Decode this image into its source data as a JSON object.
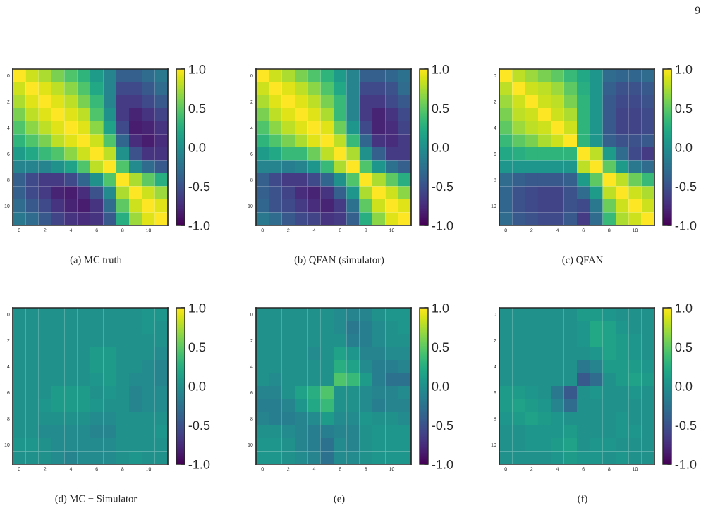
{
  "chart_data": [
    {
      "type": "heatmap",
      "title": "(a) MC truth",
      "annotations": [
        "9"
      ],
      "categories": [
        "0",
        null,
        "2",
        null,
        "4",
        null,
        "6",
        null,
        "8",
        null,
        "10",
        null
      ],
      "y_categories": [
        "0",
        null,
        "2",
        null,
        "4",
        null,
        "6",
        null,
        "8",
        null,
        "10",
        null
      ],
      "cells": [
        [
          1,
          0.85,
          0.75,
          0.6,
          0.45,
          0.3,
          0.1,
          -0.1,
          -0.4,
          -0.4,
          -0.3,
          -0.2
        ],
        [
          0.85,
          1,
          0.9,
          0.8,
          0.65,
          0.45,
          0.2,
          -0.1,
          -0.55,
          -0.55,
          -0.45,
          -0.3
        ],
        [
          0.75,
          0.9,
          1,
          0.9,
          0.8,
          0.6,
          0.35,
          -0.1,
          -0.65,
          -0.65,
          -0.55,
          -0.45
        ],
        [
          0.6,
          0.8,
          0.9,
          1,
          0.9,
          0.8,
          0.45,
          0,
          -0.65,
          -0.8,
          -0.7,
          -0.6
        ],
        [
          0.45,
          0.65,
          0.8,
          0.9,
          1,
          0.9,
          0.65,
          0.15,
          -0.55,
          -0.85,
          -0.8,
          -0.7
        ],
        [
          0.3,
          0.45,
          0.6,
          0.8,
          0.9,
          1,
          0.85,
          0.45,
          -0.35,
          -0.75,
          -0.85,
          -0.75
        ],
        [
          0.1,
          0.2,
          0.35,
          0.45,
          0.65,
          0.85,
          1,
          0.8,
          0,
          -0.5,
          -0.7,
          -0.7
        ],
        [
          -0.1,
          -0.1,
          -0.1,
          0,
          0.15,
          0.45,
          0.8,
          1,
          0.45,
          -0.05,
          -0.3,
          -0.45
        ],
        [
          -0.4,
          -0.55,
          -0.65,
          -0.65,
          -0.55,
          -0.35,
          0,
          0.45,
          1,
          0.75,
          0.5,
          0.25
        ],
        [
          -0.4,
          -0.55,
          -0.65,
          -0.8,
          -0.85,
          -0.75,
          -0.5,
          -0.05,
          0.75,
          1,
          0.85,
          0.7
        ],
        [
          -0.3,
          -0.45,
          -0.55,
          -0.7,
          -0.8,
          -0.85,
          -0.7,
          -0.3,
          0.5,
          0.85,
          1,
          0.9
        ],
        [
          -0.2,
          -0.3,
          -0.45,
          -0.6,
          -0.7,
          -0.75,
          -0.7,
          -0.45,
          0.25,
          0.7,
          0.9,
          1
        ]
      ],
      "clim": [
        -1,
        1
      ],
      "cticks": [
        {
          "value": -1,
          "label": "-1.0"
        },
        {
          "value": -0.5,
          "label": "-0.5"
        },
        {
          "value": 0,
          "label": "0.0"
        },
        {
          "value": 0.5,
          "label": "0.5"
        },
        {
          "value": 1,
          "label": "1.0"
        }
      ]
    },
    {
      "type": "heatmap",
      "title": "(b) QFAN (simulator)",
      "categories": [
        "0",
        null,
        "2",
        null,
        "4",
        null,
        "6",
        null,
        "8",
        null,
        "10",
        null
      ],
      "y_categories": [
        "0",
        null,
        "2",
        null,
        "4",
        null,
        "6",
        null,
        "8",
        null,
        "10",
        null
      ],
      "cells": [
        [
          1,
          0.85,
          0.75,
          0.6,
          0.45,
          0.3,
          0.1,
          -0.1,
          -0.4,
          -0.4,
          -0.35,
          -0.25
        ],
        [
          0.85,
          1,
          0.9,
          0.8,
          0.65,
          0.45,
          0.2,
          -0.1,
          -0.55,
          -0.55,
          -0.5,
          -0.3
        ],
        [
          0.75,
          0.9,
          1,
          0.9,
          0.8,
          0.6,
          0.35,
          -0.1,
          -0.65,
          -0.65,
          -0.55,
          -0.45
        ],
        [
          0.6,
          0.8,
          0.9,
          1,
          0.9,
          0.75,
          0.35,
          -0.1,
          -0.65,
          -0.8,
          -0.7,
          -0.55
        ],
        [
          0.45,
          0.65,
          0.8,
          0.9,
          1,
          0.9,
          0.55,
          0.05,
          -0.55,
          -0.8,
          -0.75,
          -0.6
        ],
        [
          0.3,
          0.45,
          0.6,
          0.75,
          0.9,
          1,
          0.8,
          0.35,
          -0.35,
          -0.7,
          -0.75,
          -0.65
        ],
        [
          0.1,
          0.2,
          0.35,
          0.35,
          0.55,
          0.8,
          1,
          0.75,
          0,
          -0.4,
          -0.65,
          -0.65
        ],
        [
          -0.1,
          -0.1,
          -0.15,
          -0.1,
          0.05,
          0.35,
          0.75,
          1,
          0.45,
          0.05,
          -0.25,
          -0.4
        ],
        [
          -0.4,
          -0.55,
          -0.65,
          -0.65,
          -0.55,
          -0.35,
          0,
          0.45,
          1,
          0.75,
          0.5,
          0.25
        ],
        [
          -0.4,
          -0.5,
          -0.6,
          -0.75,
          -0.8,
          -0.7,
          -0.4,
          0.05,
          0.75,
          1,
          0.85,
          0.65
        ],
        [
          -0.35,
          -0.5,
          -0.55,
          -0.65,
          -0.75,
          -0.8,
          -0.65,
          -0.25,
          0.5,
          0.85,
          1,
          0.9
        ],
        [
          -0.2,
          -0.3,
          -0.45,
          -0.55,
          -0.6,
          -0.7,
          -0.65,
          -0.4,
          0.25,
          0.65,
          0.9,
          1
        ]
      ],
      "clim": [
        -1,
        1
      ],
      "cticks": [
        {
          "value": -1,
          "label": "-1.0"
        },
        {
          "value": -0.5,
          "label": "-0.5"
        },
        {
          "value": 0,
          "label": "0.0"
        },
        {
          "value": 0.5,
          "label": "0.5"
        },
        {
          "value": 1,
          "label": "1.0"
        }
      ]
    },
    {
      "type": "heatmap",
      "title": "(c) QFAN",
      "categories": [
        "0",
        null,
        "2",
        null,
        "4",
        null,
        "6",
        null,
        "8",
        null,
        "10",
        null
      ],
      "y_categories": [
        "0",
        null,
        "2",
        null,
        "4",
        null,
        "6",
        null,
        "8",
        null,
        "10",
        null
      ],
      "cells": [
        [
          1,
          0.8,
          0.7,
          0.6,
          0.5,
          0.35,
          0.2,
          0.05,
          -0.3,
          -0.35,
          -0.35,
          -0.3
        ],
        [
          0.8,
          1,
          0.85,
          0.8,
          0.7,
          0.5,
          0.25,
          0.05,
          -0.4,
          -0.5,
          -0.5,
          -0.45
        ],
        [
          0.7,
          0.85,
          1,
          0.85,
          0.8,
          0.6,
          0.3,
          0.05,
          -0.45,
          -0.55,
          -0.55,
          -0.5
        ],
        [
          0.6,
          0.8,
          0.85,
          1,
          0.85,
          0.75,
          0.3,
          0.05,
          -0.45,
          -0.6,
          -0.6,
          -0.55
        ],
        [
          0.5,
          0.7,
          0.8,
          0.85,
          1,
          0.85,
          0.3,
          0.05,
          -0.45,
          -0.6,
          -0.6,
          -0.55
        ],
        [
          0.35,
          0.5,
          0.6,
          0.75,
          0.85,
          1,
          0.3,
          0.05,
          -0.4,
          -0.5,
          -0.5,
          -0.45
        ],
        [
          0.2,
          0.25,
          0.3,
          0.3,
          0.3,
          0.3,
          1,
          0.8,
          0.1,
          -0.3,
          -0.55,
          -0.65
        ],
        [
          0.05,
          0.05,
          0.05,
          0.05,
          0.05,
          0.05,
          0.8,
          1,
          0.5,
          0.1,
          -0.2,
          -0.3
        ],
        [
          -0.3,
          -0.4,
          -0.45,
          -0.45,
          -0.45,
          -0.4,
          0.1,
          0.5,
          1,
          0.8,
          0.55,
          0.35
        ],
        [
          -0.35,
          -0.5,
          -0.55,
          -0.6,
          -0.6,
          -0.5,
          -0.3,
          0.1,
          0.8,
          1,
          0.85,
          0.75
        ],
        [
          -0.35,
          -0.5,
          -0.55,
          -0.6,
          -0.6,
          -0.5,
          -0.55,
          -0.2,
          0.55,
          0.85,
          1,
          0.85
        ],
        [
          -0.3,
          -0.45,
          -0.5,
          -0.55,
          -0.55,
          -0.45,
          -0.65,
          -0.3,
          0.35,
          0.75,
          0.85,
          1
        ]
      ],
      "clim": [
        -1,
        1
      ],
      "cticks": [
        {
          "value": -1,
          "label": "-1.0"
        },
        {
          "value": -0.5,
          "label": "-0.5"
        },
        {
          "value": 0,
          "label": "0.0"
        },
        {
          "value": 0.5,
          "label": "0.5"
        },
        {
          "value": 1,
          "label": "1.0"
        }
      ]
    },
    {
      "type": "heatmap",
      "title": "(d) MC − Simulator",
      "categories": [
        "0",
        null,
        "2",
        null,
        "4",
        null,
        "6",
        null,
        "8",
        null,
        "10",
        null
      ],
      "y_categories": [
        "0",
        null,
        "2",
        null,
        "4",
        null,
        "6",
        null,
        "8",
        null,
        "10",
        null
      ],
      "cells": [
        [
          0,
          0,
          0,
          0,
          0,
          0,
          0,
          0,
          0,
          0,
          0.05,
          0.05
        ],
        [
          0,
          0,
          0,
          0,
          0,
          0,
          0,
          0,
          0,
          0,
          0.05,
          0
        ],
        [
          0,
          0,
          0,
          0,
          0,
          0,
          0,
          0,
          0,
          0,
          0,
          0
        ],
        [
          0,
          0,
          0,
          0,
          0,
          0,
          0.1,
          0.1,
          0,
          0,
          0,
          -0.05
        ],
        [
          0,
          0,
          0,
          0,
          0,
          0,
          0.1,
          0.1,
          0,
          0,
          -0.05,
          -0.1
        ],
        [
          0,
          0,
          0,
          0,
          0,
          0,
          0.05,
          0.1,
          0,
          -0.05,
          -0.05,
          -0.1
        ],
        [
          0,
          0,
          0,
          0.1,
          0.1,
          0.1,
          0,
          0.05,
          0,
          -0.1,
          -0.05,
          -0.05
        ],
        [
          0,
          0,
          0.05,
          0.1,
          0.1,
          0.1,
          0.05,
          0,
          0,
          -0.1,
          -0.05,
          -0.05
        ],
        [
          0,
          0,
          0,
          0,
          0,
          0,
          -0.05,
          -0.05,
          0,
          0,
          0,
          0
        ],
        [
          0,
          0,
          -0.05,
          -0.05,
          -0.05,
          -0.05,
          -0.1,
          -0.1,
          0,
          0,
          0,
          0.05
        ],
        [
          0.05,
          0.05,
          0,
          -0.05,
          -0.05,
          -0.05,
          -0.05,
          -0.05,
          0,
          0,
          0,
          0
        ],
        [
          0,
          0,
          0,
          -0.05,
          -0.1,
          -0.05,
          -0.05,
          -0.05,
          0,
          0.05,
          0,
          0
        ]
      ],
      "clim": [
        -1,
        1
      ],
      "cticks": [
        {
          "value": -1,
          "label": "-1.0"
        },
        {
          "value": -0.5,
          "label": "-0.5"
        },
        {
          "value": 0,
          "label": "0.0"
        },
        {
          "value": 0.5,
          "label": "0.5"
        },
        {
          "value": 1,
          "label": "1.0"
        }
      ]
    },
    {
      "type": "heatmap",
      "title": "(e)",
      "categories": [
        "0",
        null,
        "2",
        null,
        "4",
        null,
        "6",
        null,
        "8",
        null,
        "10",
        null
      ],
      "y_categories": [
        "0",
        null,
        "2",
        null,
        "4",
        null,
        "6",
        null,
        "8",
        null,
        "10",
        null
      ],
      "cells": [
        [
          0,
          0,
          0,
          0,
          0,
          0,
          -0.05,
          -0.1,
          -0.1,
          0,
          0.05,
          0.05
        ],
        [
          0,
          0,
          0,
          0,
          0,
          0,
          -0.05,
          -0.2,
          -0.15,
          -0.05,
          0,
          0.05
        ],
        [
          0,
          0,
          0,
          0,
          0,
          0,
          0,
          -0.15,
          -0.15,
          -0.05,
          0,
          0
        ],
        [
          0,
          0,
          0,
          0,
          -0.05,
          0,
          0.15,
          0.05,
          -0.1,
          -0.1,
          -0.05,
          -0.05
        ],
        [
          0,
          0,
          0,
          0,
          0,
          0,
          0.25,
          0.15,
          -0.05,
          -0.15,
          -0.15,
          -0.1
        ],
        [
          0,
          -0.05,
          0,
          0,
          0,
          0,
          0.45,
          0.35,
          0.1,
          -0.15,
          -0.25,
          -0.25
        ],
        [
          -0.1,
          -0.1,
          0,
          0.15,
          0.25,
          0.45,
          0,
          0,
          -0.05,
          -0.1,
          -0.1,
          -0.05
        ],
        [
          -0.15,
          -0.15,
          -0.1,
          0.05,
          0.2,
          0.35,
          0,
          0,
          -0.05,
          -0.15,
          -0.1,
          -0.1
        ],
        [
          -0.1,
          -0.15,
          -0.15,
          -0.1,
          -0.05,
          0.1,
          -0.05,
          -0.05,
          0.05,
          0,
          0,
          -0.05
        ],
        [
          0,
          0,
          -0.05,
          -0.1,
          -0.15,
          -0.15,
          -0.1,
          -0.1,
          0,
          0.05,
          0.05,
          0.05
        ],
        [
          0.05,
          0.05,
          0,
          -0.1,
          -0.15,
          -0.25,
          -0.05,
          -0.1,
          0,
          0.05,
          0.05,
          0.05
        ],
        [
          0.05,
          0.05,
          0,
          -0.05,
          -0.1,
          -0.25,
          -0.05,
          -0.05,
          0,
          0.05,
          0.05,
          0.05
        ]
      ],
      "clim": [
        -1,
        1
      ],
      "cticks": [
        {
          "value": -1,
          "label": "-1.0"
        },
        {
          "value": -0.5,
          "label": "-0.5"
        },
        {
          "value": 0,
          "label": "0.0"
        },
        {
          "value": 0.5,
          "label": "0.5"
        },
        {
          "value": 1,
          "label": "1.0"
        }
      ]
    },
    {
      "type": "heatmap",
      "title": "(f)",
      "categories": [
        "0",
        null,
        "2",
        null,
        "4",
        null,
        "6",
        null,
        "8",
        null,
        "10",
        null
      ],
      "y_categories": [
        "0",
        null,
        "2",
        null,
        "4",
        null,
        "6",
        null,
        "8",
        null,
        "10",
        null
      ],
      "cells": [
        [
          0,
          0,
          0,
          0,
          0,
          0,
          0.1,
          0.1,
          0.05,
          0,
          0,
          0
        ],
        [
          0,
          0,
          0,
          0,
          0,
          0,
          0.05,
          0.2,
          0.15,
          0.05,
          0,
          0
        ],
        [
          0,
          0,
          0,
          0,
          0,
          0,
          0.05,
          0.2,
          0.15,
          0.1,
          0.05,
          0
        ],
        [
          0,
          0,
          0,
          0,
          0,
          0,
          0,
          0.05,
          0.15,
          0.1,
          0.05,
          0
        ],
        [
          0,
          0,
          0,
          0,
          0,
          0,
          -0.2,
          -0.1,
          0.1,
          0.1,
          0.1,
          0.05
        ],
        [
          0,
          0,
          0,
          0,
          0,
          0,
          -0.45,
          -0.3,
          0,
          0.1,
          0.15,
          0.1
        ],
        [
          0.1,
          0.1,
          0.05,
          0,
          -0.2,
          -0.45,
          0,
          0.05,
          0,
          0,
          0.05,
          0
        ],
        [
          0.1,
          0.15,
          0.1,
          0.05,
          -0.1,
          -0.3,
          0,
          0,
          0,
          0,
          0,
          0
        ],
        [
          0.05,
          0.1,
          0.15,
          0.1,
          0.05,
          0,
          0,
          0,
          0,
          0.05,
          0,
          0
        ],
        [
          0,
          0,
          0.05,
          0.05,
          0.05,
          0.1,
          0,
          0,
          0,
          0.05,
          0.05,
          0
        ],
        [
          0,
          0,
          0.05,
          0.05,
          0.1,
          0.15,
          0,
          0.05,
          0.05,
          0,
          0,
          0
        ],
        [
          0,
          0,
          0,
          0,
          0.05,
          0.1,
          0.05,
          0.05,
          0,
          0.05,
          0,
          0
        ]
      ],
      "clim": [
        -1,
        1
      ],
      "cticks": [
        {
          "value": -1,
          "label": "-1.0"
        },
        {
          "value": -0.5,
          "label": "-0.5"
        },
        {
          "value": 0,
          "label": "0.0"
        },
        {
          "value": 0.5,
          "label": "0.5"
        },
        {
          "value": 1,
          "label": "1.0"
        }
      ]
    }
  ]
}
